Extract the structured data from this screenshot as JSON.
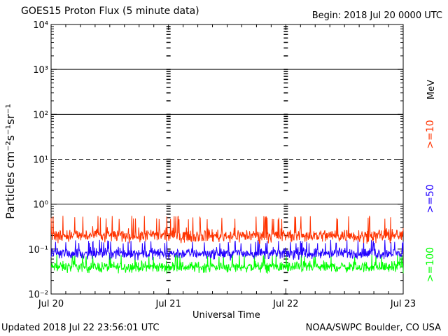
{
  "title": "GOES15 Proton Flux (5 minute data)",
  "begin": "Begin: 2018 Jul 20 0000 UTC",
  "updated": "Updated 2018 Jul 22 23:56:01 UTC",
  "credit": "NOAA/SWPC Boulder, CO USA",
  "chart_data": {
    "type": "line",
    "title": "GOES15 Proton Flux (5 minute data)",
    "xlabel": "Universal Time",
    "ylabel": "Particles cm⁻²s⁻¹sr⁻¹",
    "yscale": "log",
    "ylim": [
      0.01,
      10000
    ],
    "ytick_labels": [
      "10⁻²",
      "10⁻¹",
      "10⁰",
      "10¹",
      "10²",
      "10³",
      "10⁴"
    ],
    "xtick_labels": [
      "Jul 20",
      "Jul 21",
      "Jul 22",
      "Jul 23"
    ],
    "legend_title": "MeV",
    "series": [
      {
        "name": ">=10",
        "color": "#ff3300",
        "baseline": 0.2,
        "range": [
          0.13,
          0.55
        ]
      },
      {
        "name": ">=50",
        "color": "#2200ff",
        "baseline": 0.08,
        "range": [
          0.05,
          0.16
        ]
      },
      {
        "name": ">=100",
        "color": "#00ff00",
        "baseline": 0.04,
        "range": [
          0.025,
          0.08
        ]
      }
    ],
    "reference_lines": [
      {
        "value": 1,
        "style": "solid"
      },
      {
        "value": 10,
        "style": "dashed"
      },
      {
        "value": 100,
        "style": "solid"
      },
      {
        "value": 1000,
        "style": "solid"
      }
    ],
    "data_gaps": [
      "Jul 21 00:00",
      "Jul 22 00:00"
    ]
  }
}
